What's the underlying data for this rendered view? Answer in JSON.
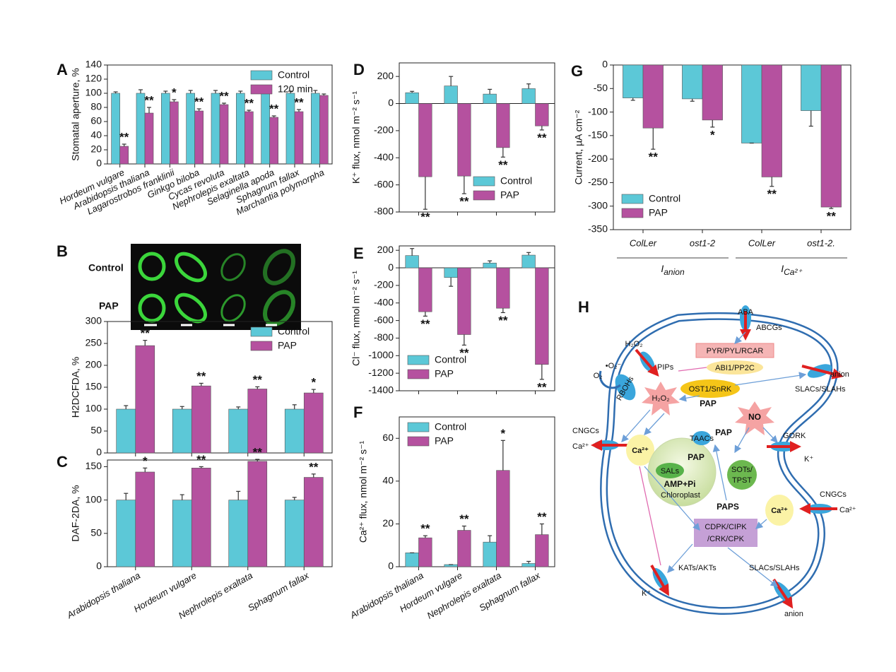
{
  "chart_data": [
    {
      "type": "bar",
      "panel": "A",
      "ylabel": "Stomatal aperture, %",
      "categories": [
        "Hordeum vulgare",
        "Arabidopsis thaliana",
        "Lagarostrobos franklinii",
        "Ginkgo biloba",
        "Cycas revoluta",
        "Nephrolepis exaltata",
        "Selaginella apoda",
        "Sphagnum fallax",
        "Marchantia polymorpha"
      ],
      "series": [
        {
          "name": "Control",
          "color": "#5cc8d7",
          "values": [
            100,
            100,
            100,
            100,
            100,
            100,
            100,
            100,
            100
          ],
          "errors": [
            2,
            5,
            3,
            4,
            4,
            3,
            4,
            3,
            4
          ],
          "significance": [
            null,
            null,
            null,
            null,
            null,
            null,
            null,
            null,
            null
          ]
        },
        {
          "name": "120 min",
          "color": "#b5519f",
          "values": [
            25,
            72,
            88,
            75,
            84,
            74,
            66,
            74,
            97
          ],
          "errors": [
            3,
            8,
            3,
            3,
            2,
            2,
            2,
            3,
            2
          ],
          "significance": [
            "**",
            "**",
            "*",
            "**",
            "**",
            "**",
            "**",
            "**",
            null
          ]
        }
      ],
      "ylim": [
        0,
        140
      ],
      "yticks": [
        0,
        20,
        40,
        60,
        80,
        100,
        120,
        140
      ],
      "legend": "upper right"
    },
    {
      "type": "bar",
      "panel": null,
      "ylabel": "H2DCFDA, %",
      "categories": [
        null,
        null,
        null,
        null
      ],
      "series": [
        {
          "name": "Control",
          "color": "#5cc8d7",
          "values": [
            100,
            100,
            100,
            100
          ],
          "errors": [
            8,
            6,
            5,
            10
          ],
          "significance": [
            null,
            null,
            null,
            null
          ]
        },
        {
          "name": "PAP",
          "color": "#b5519f",
          "values": [
            245,
            153,
            146,
            137
          ],
          "errors": [
            12,
            6,
            5,
            8
          ],
          "significance": [
            "**",
            "**",
            "**",
            "*"
          ]
        }
      ],
      "ylim": [
        0,
        300
      ],
      "yticks": [
        0,
        50,
        100,
        150,
        200,
        250,
        300
      ],
      "legend": "upper right"
    },
    {
      "type": "bar",
      "panel": "C",
      "ylabel": "DAF-2DA, %",
      "categories": [
        "Arabidopsis thaliana",
        "Hordeum vulgare",
        "Nephrolepis exaltata",
        "Sphagnum fallax"
      ],
      "series": [
        {
          "name": "Control",
          "color": "#5cc8d7",
          "values": [
            100,
            100,
            100,
            100
          ],
          "errors": [
            10,
            8,
            13,
            4
          ],
          "significance": [
            null,
            null,
            null,
            null
          ]
        },
        {
          "name": "PAP",
          "color": "#b5519f",
          "values": [
            142,
            148,
            158,
            134
          ],
          "errors": [
            6,
            2,
            3,
            5
          ],
          "significance": [
            "*",
            "**",
            "**",
            "**"
          ]
        }
      ],
      "ylim": [
        0,
        160
      ],
      "yticks": [
        0,
        50,
        100,
        150
      ],
      "legend": null
    },
    {
      "type": "bar",
      "panel": "D",
      "ylabel": "K⁺ flux, nmol m⁻² s⁻¹",
      "categories": [
        null,
        null,
        null,
        null
      ],
      "series": [
        {
          "name": "Control",
          "color": "#5cc8d7",
          "values": [
            80,
            130,
            70,
            110
          ],
          "errors": [
            10,
            70,
            35,
            35
          ],
          "significance": [
            null,
            null,
            null,
            null
          ]
        },
        {
          "name": "PAP",
          "color": "#b5519f",
          "values": [
            -540,
            -535,
            -325,
            -165
          ],
          "errors": [
            240,
            130,
            70,
            30
          ],
          "significance": [
            "**",
            "**",
            "**",
            "**"
          ]
        }
      ],
      "ylim": [
        -800,
        300
      ],
      "yticks": [
        -800,
        -600,
        -400,
        -200,
        0,
        200
      ],
      "legend": "lower right"
    },
    {
      "type": "bar",
      "panel": "E",
      "ylabel": "Cl⁻ flux, nmol m⁻² s⁻¹",
      "categories": [
        null,
        null,
        null,
        null
      ],
      "series": [
        {
          "name": "Control",
          "color": "#5cc8d7",
          "values": [
            140,
            -110,
            55,
            145
          ],
          "errors": [
            80,
            100,
            25,
            30
          ],
          "significance": [
            null,
            null,
            null,
            null
          ]
        },
        {
          "name": "PAP",
          "color": "#b5519f",
          "values": [
            -500,
            -760,
            -460,
            -1100
          ],
          "errors": [
            50,
            120,
            50,
            170
          ],
          "significance": [
            "**",
            "**",
            "**",
            "**"
          ]
        }
      ],
      "ylim": [
        -1400,
        250
      ],
      "yticks": [
        -1400,
        -1200,
        -1000,
        -800,
        -600,
        -400,
        -200,
        0,
        200
      ],
      "legend": "lower left"
    },
    {
      "type": "bar",
      "panel": "F",
      "ylabel": "Ca²⁺ flux, nmol m⁻² s⁻¹",
      "categories": [
        "Arabidopsis thaliana",
        "Hordeum vulgare",
        "Nephrolepis exaltata",
        "Sphagnum fallax"
      ],
      "series": [
        {
          "name": "Control",
          "color": "#5cc8d7",
          "values": [
            6.5,
            1,
            11.5,
            1.5
          ],
          "errors": [
            0,
            0,
            3,
            1
          ],
          "significance": [
            null,
            null,
            null,
            null
          ]
        },
        {
          "name": "PAP",
          "color": "#b5519f",
          "values": [
            13.5,
            17,
            45,
            15
          ],
          "errors": [
            1,
            2,
            14,
            5
          ],
          "significance": [
            "**",
            "**",
            "*",
            "**"
          ]
        }
      ],
      "ylim": [
        0,
        70
      ],
      "yticks": [
        0,
        20,
        40,
        60
      ],
      "legend": "upper left"
    },
    {
      "type": "bar",
      "panel": "G",
      "ylabel": "Current, µA cm⁻²",
      "categories": [
        "ColLer",
        "ost1-2",
        "ColLer",
        "ost1-2."
      ],
      "group_labels": [
        {
          "name": "I",
          "sub": "anion"
        },
        {
          "name": "I",
          "sub": "Ca²⁺"
        }
      ],
      "series": [
        {
          "name": "Control",
          "color": "#5cc8d7",
          "values": [
            -70,
            -72,
            -166,
            -97
          ],
          "errors": [
            5,
            5,
            0,
            33
          ],
          "significance": [
            null,
            null,
            null,
            null
          ]
        },
        {
          "name": "PAP",
          "color": "#b5519f",
          "values": [
            -134,
            -117,
            -238,
            -302
          ],
          "errors": [
            45,
            15,
            20,
            3
          ],
          "significance": [
            "**",
            "*",
            "**",
            "**"
          ]
        }
      ],
      "ylim": [
        -350,
        0
      ],
      "yticks": [
        -350,
        -300,
        -250,
        -200,
        -150,
        -100,
        -50,
        0
      ],
      "legend": "lower left"
    }
  ],
  "micrograph": {
    "panel": "B",
    "rows": [
      "Control",
      "PAP"
    ]
  },
  "diagram": {
    "panel": "H",
    "labels": [
      "ABA",
      "ABCGs",
      "H₂O₂",
      "PIPs",
      "O₂",
      "•O₂⁻",
      "RBOHs",
      "PYR/PYL/RCAR",
      "ABI1/PP2C",
      "OST1/SnRK",
      "anion",
      "SLACs/SLAHs",
      "H₂O₂",
      "NO",
      "PAP",
      "PAP",
      "TAACs",
      "PAP",
      "SALs",
      "AMP+Pi",
      "Chloroplast",
      "SOTs/",
      "TPST",
      "PAPS",
      "GORK",
      "K⁺",
      "CNGCs",
      "Ca²⁺",
      "Ca²⁺",
      "CNGCs",
      "Ca²⁺",
      "Ca²⁺",
      "CDPK/CIPK",
      "/CRK/CPK",
      "KATs/AKTs",
      "K⁺",
      "SLACs/SLAHs",
      "anion"
    ]
  }
}
